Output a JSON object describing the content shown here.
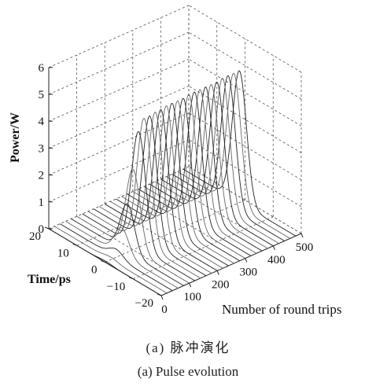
{
  "chart_data": {
    "type": "3d-waterfall-line",
    "zlabel": "Power/W",
    "ylabel": "Time/ps",
    "xlabel": "Number of round trips",
    "z_ticks": [
      "0",
      "1",
      "2",
      "3",
      "4",
      "5",
      "6"
    ],
    "y_ticks": [
      "20",
      "10",
      "0",
      "−10",
      "−20"
    ],
    "x_ticks": [
      "0",
      "100",
      "200",
      "300",
      "400",
      "500"
    ],
    "zlim": [
      0,
      6
    ],
    "ylim": [
      -20,
      20
    ],
    "xlim": [
      0,
      500
    ],
    "grid": true,
    "pulse_center_ps": 0,
    "pulse_width_ps": 2.5,
    "round_trips": [
      0,
      20,
      40,
      60,
      80,
      100,
      120,
      140,
      160,
      180,
      200,
      220,
      240,
      260,
      280,
      300,
      320,
      340,
      360,
      380,
      400,
      420,
      440,
      460,
      480
    ],
    "peak_power_W": [
      0.05,
      0.1,
      0.3,
      1.0,
      1.8,
      3.0,
      4.3,
      4.7,
      4.7,
      4.75,
      4.75,
      4.8,
      4.8,
      4.8,
      4.8,
      4.85,
      4.85,
      4.85,
      4.85,
      4.85,
      4.85,
      4.9,
      4.9,
      4.9,
      4.9
    ]
  },
  "captions": {
    "cn": "(a) 脉冲演化",
    "en": "(a) Pulse evolution"
  }
}
